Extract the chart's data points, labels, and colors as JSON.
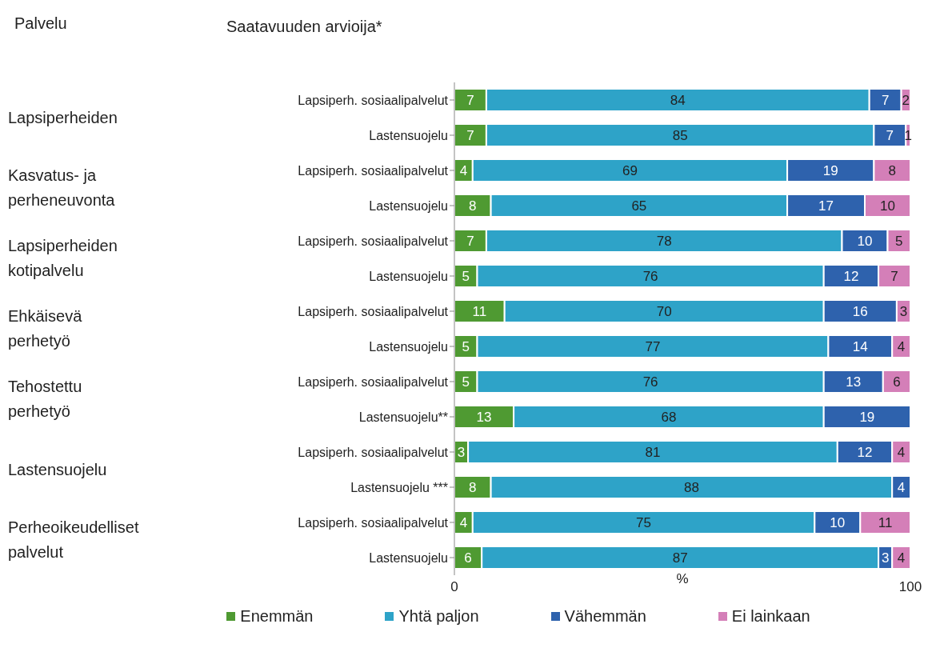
{
  "chart_data": {
    "type": "bar",
    "orientation": "horizontal",
    "stacked": true,
    "ylabel": "Saatavuuden arvioija*",
    "xlabel": "%",
    "annotations": [
      "Palvelu",
      "Lapsiperheiden",
      "Kasvatus- ja perheneuvonta",
      "Lapsiperheiden kotipalvelu",
      "Ehkäisevä perhetyö",
      "Tehostettu perhetyö",
      "Lastensuojelu",
      "Perheoikeudelliset palvelut"
    ],
    "categories": [
      "Lapsiperh. sosiaalipalvelut",
      "Lastensuojelu",
      "Lapsiperh. sosiaalipalvelut",
      "Lastensuojelu",
      "Lapsiperh. sosiaalipalvelut",
      "Lastensuojelu",
      "Lapsiperh. sosiaalipalvelut",
      "Lastensuojelu",
      "Lapsiperh. sosiaalipalvelut",
      "Lastensuojelu**",
      "Lapsiperh. sosiaalipalvelut",
      "Lastensuojelu ***",
      "Lapsiperh. sosiaalipalvelut",
      "Lastensuojelu"
    ],
    "series": [
      {
        "name": "Enemmän",
        "color": "#4f9a32",
        "values": [
          7,
          7,
          4,
          8,
          7,
          5,
          11,
          5,
          5,
          13,
          3,
          8,
          4,
          6
        ]
      },
      {
        "name": "Yhtä paljon",
        "color": "#2ea3c8",
        "values": [
          84,
          85,
          69,
          65,
          78,
          76,
          70,
          77,
          76,
          68,
          81,
          88,
          75,
          87
        ]
      },
      {
        "name": "Vähemmän",
        "color": "#2e62ad",
        "values": [
          7,
          7,
          19,
          17,
          10,
          12,
          16,
          14,
          13,
          19,
          12,
          4,
          10,
          3
        ]
      },
      {
        "name": "Ei lainkaan",
        "color": "#d47fb8",
        "values": [
          2,
          1,
          8,
          10,
          5,
          7,
          3,
          4,
          6,
          null,
          4,
          null,
          11,
          4
        ]
      }
    ],
    "xlim": [
      0,
      100
    ],
    "xticks": [
      0,
      100
    ],
    "data_labels": true,
    "legend": "bottom"
  }
}
